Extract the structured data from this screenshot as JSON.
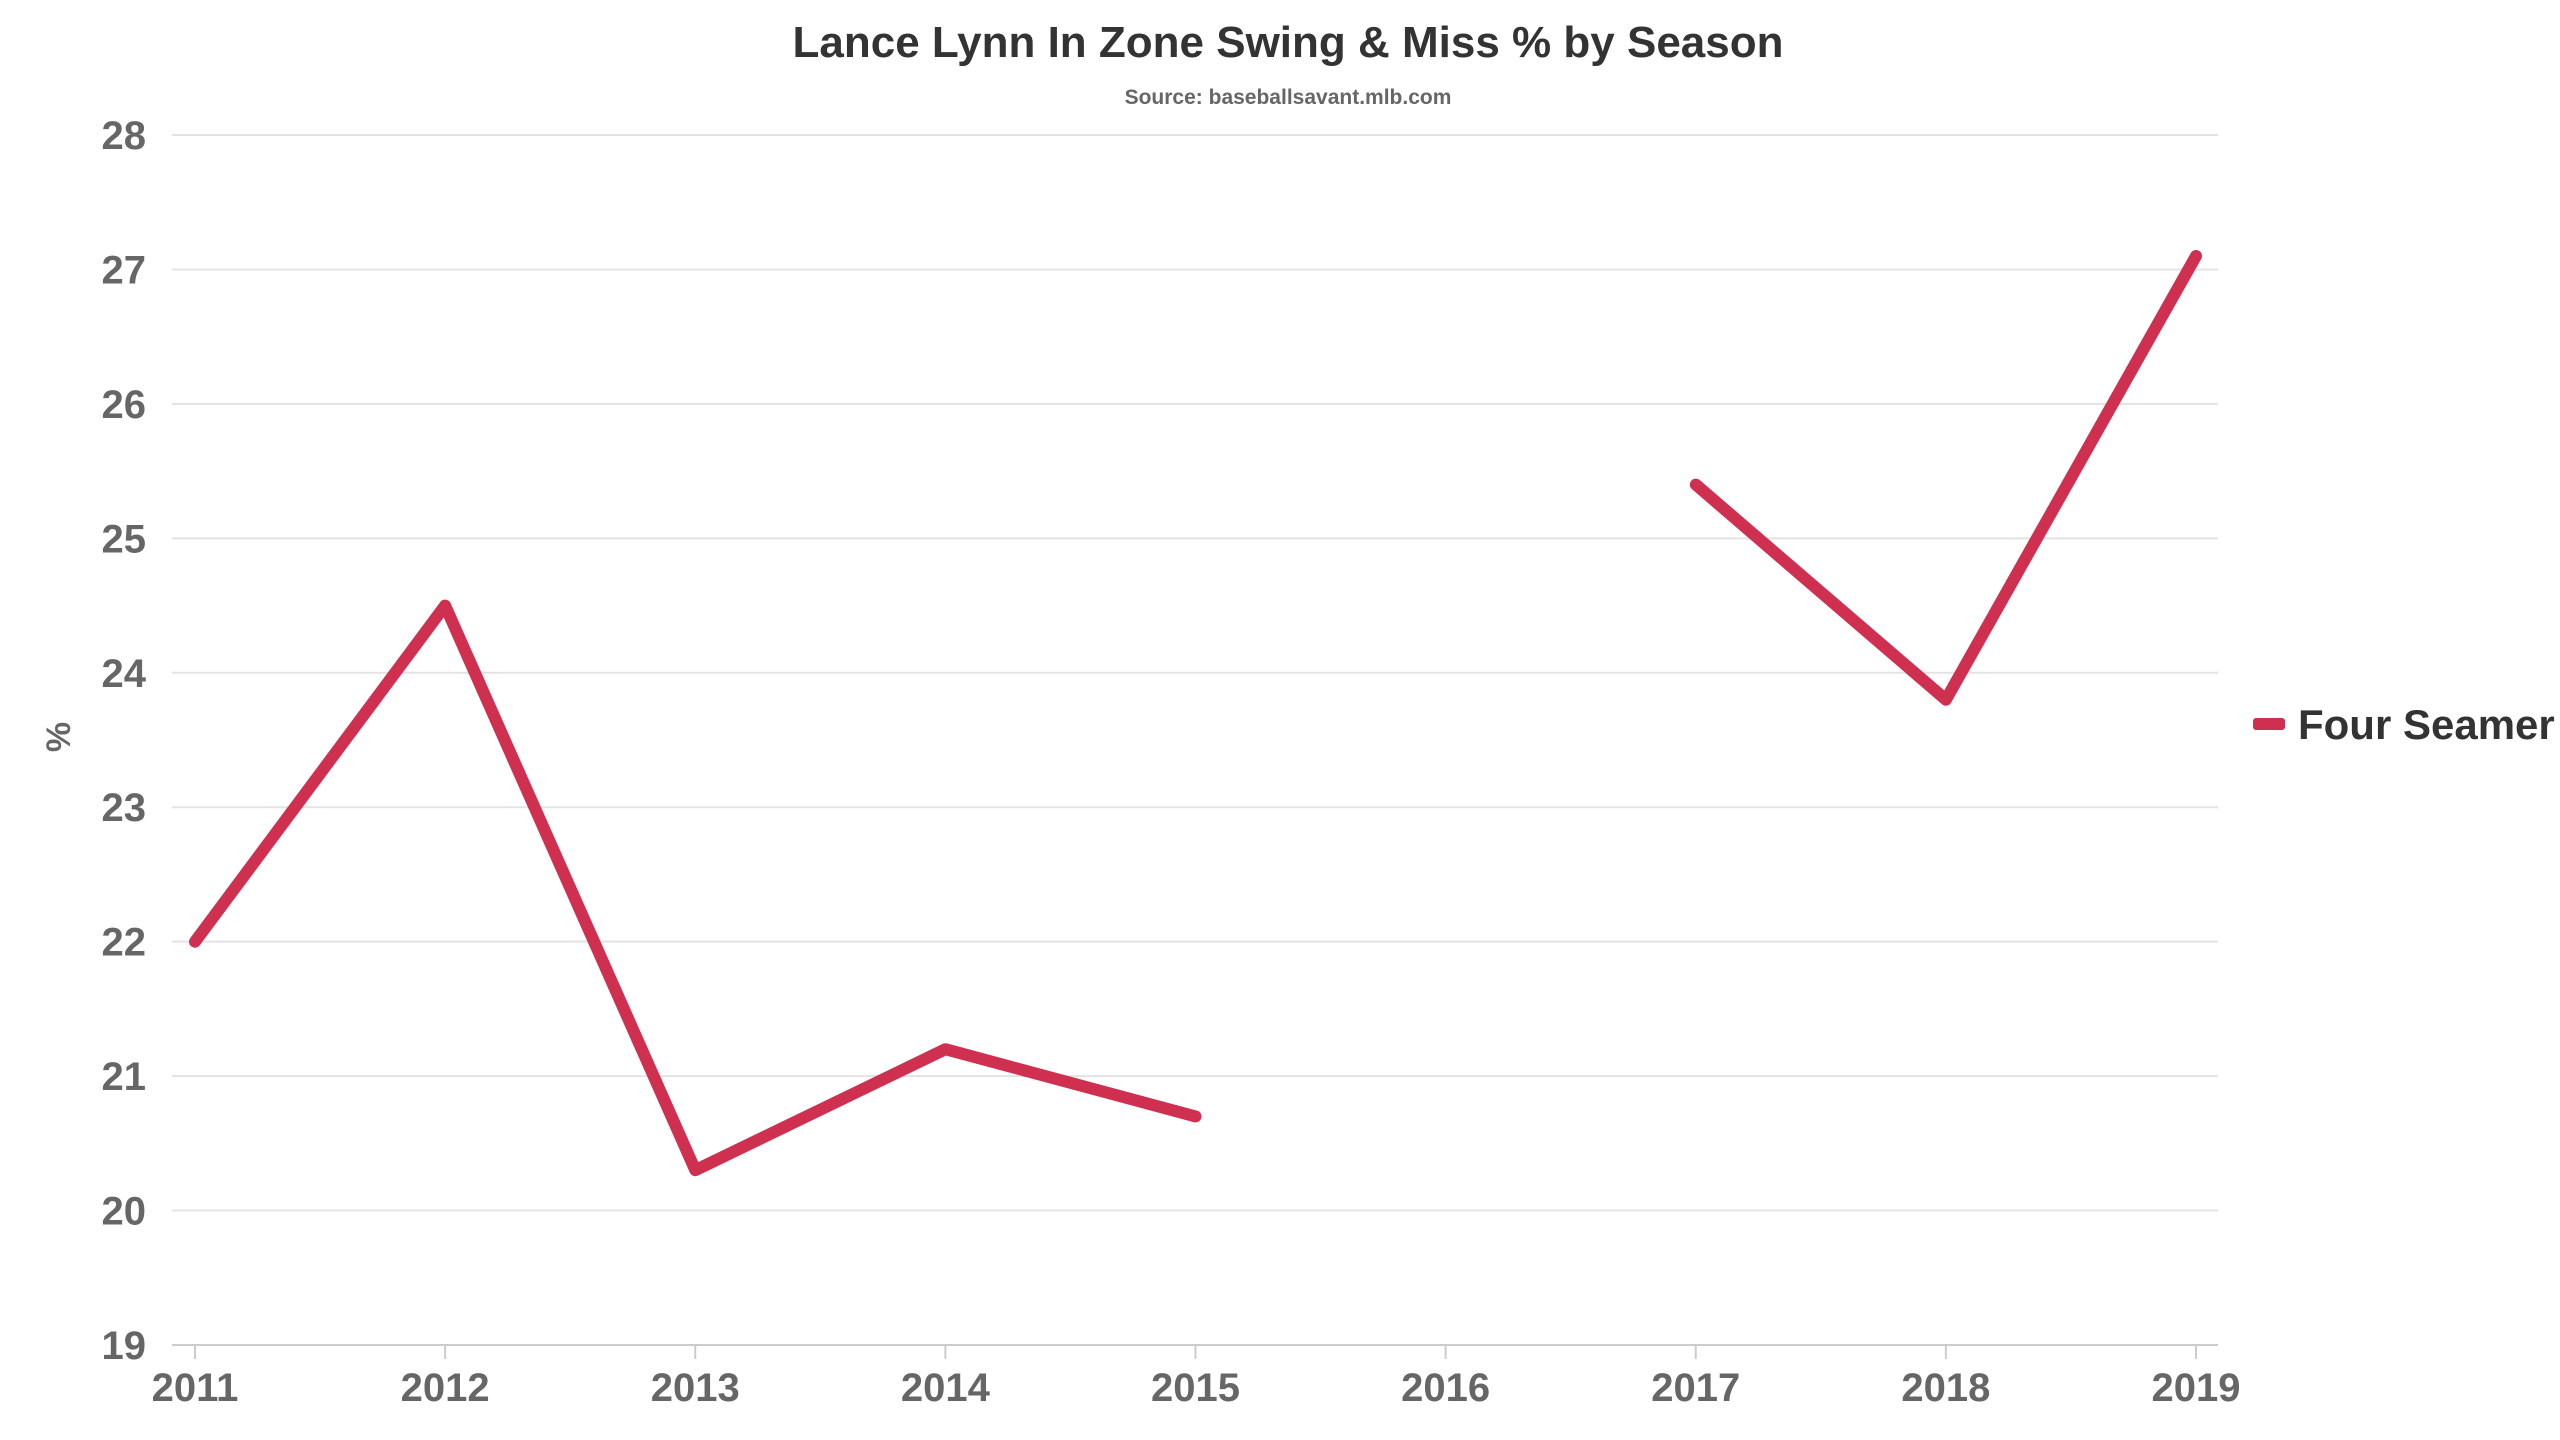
{
  "chart_data": {
    "type": "line",
    "title": "Lance Lynn In Zone Swing & Miss % by Season",
    "subtitle": "Source: baseballsavant.mlb.com",
    "xlabel": "",
    "ylabel": "%",
    "categories": [
      "2011",
      "2012",
      "2013",
      "2014",
      "2015",
      "2016",
      "2017",
      "2018",
      "2019"
    ],
    "ylim": [
      19,
      28
    ],
    "yticks": [
      19,
      20,
      21,
      22,
      23,
      24,
      25,
      26,
      27,
      28
    ],
    "grid": true,
    "legend_position": "right",
    "series": [
      {
        "name": "Four Seamer",
        "color": "#d0304f",
        "values": [
          22.0,
          24.5,
          20.3,
          21.2,
          20.7,
          null,
          25.4,
          23.8,
          27.1
        ]
      }
    ]
  }
}
